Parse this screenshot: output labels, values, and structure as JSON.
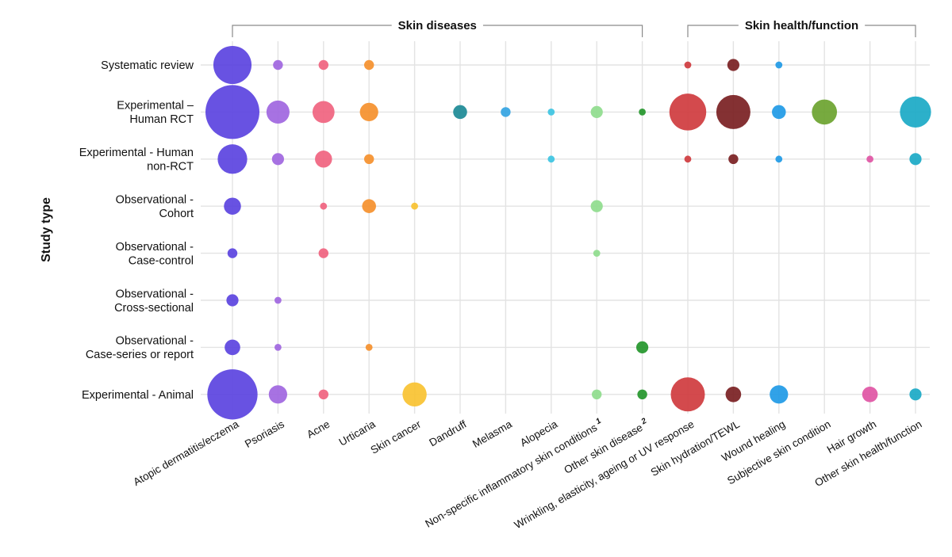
{
  "chart_data": {
    "type": "scatter",
    "subtype": "bubble-matrix",
    "ylabel": "Study type",
    "groups": [
      {
        "label": "Skin diseases",
        "from": "Atopic dermatitis/eczema",
        "to": "Other skin disease"
      },
      {
        "label": "Skin health/function",
        "from": "Wrinkling, elasticity, ageing or UV response",
        "to": "Other skin health/function"
      }
    ],
    "rows": [
      {
        "label": [
          "Systematic review"
        ]
      },
      {
        "label": [
          "Experimental –",
          "Human RCT"
        ]
      },
      {
        "label": [
          "Experimental - Human",
          "non-RCT"
        ]
      },
      {
        "label": [
          "Observational -",
          "Cohort"
        ]
      },
      {
        "label": [
          "Observational -",
          "Case-control"
        ]
      },
      {
        "label": [
          "Observational -",
          "Cross-sectional"
        ]
      },
      {
        "label": [
          "Observational -",
          "Case-series or report"
        ]
      },
      {
        "label": [
          "Experimental - Animal"
        ]
      }
    ],
    "columns": [
      {
        "label": "Atopic dermatitis/eczema",
        "footnote": "",
        "color": "#5b43e0"
      },
      {
        "label": "Psoriasis",
        "footnote": "",
        "color": "#a066e0"
      },
      {
        "label": "Acne",
        "footnote": "",
        "color": "#f0637f"
      },
      {
        "label": "Urticaria",
        "footnote": "",
        "color": "#f5902c"
      },
      {
        "label": "Skin cancer",
        "footnote": "",
        "color": "#f8c231"
      },
      {
        "label": "Dandruff",
        "footnote": "",
        "color": "#1c8a96"
      },
      {
        "label": "Melasma",
        "footnote": "",
        "color": "#34a4e2"
      },
      {
        "label": "Alopecia",
        "footnote": "",
        "color": "#3dc4e2"
      },
      {
        "label": "Non-specific inflammatory skin conditions",
        "footnote": "1",
        "color": "#8fdc8d"
      },
      {
        "label": "Other skin disease",
        "footnote": "2",
        "color": "#24962b"
      },
      {
        "label": "Wrinkling, elasticity, ageing or UV response",
        "footnote": "",
        "color": "#cf3b3e"
      },
      {
        "label": "Skin hydration/TEWL",
        "footnote": "",
        "color": "#7a1f22"
      },
      {
        "label": "Wound healing",
        "footnote": "",
        "color": "#1f9ae6"
      },
      {
        "label": "Subjective skin condition",
        "footnote": "",
        "color": "#6ba32f"
      },
      {
        "label": "Hair growth",
        "footnote": "",
        "color": "#e055a4"
      },
      {
        "label": "Other skin health/function",
        "footnote": "",
        "color": "#1aa9c6"
      }
    ],
    "values": [
      [
        30,
        2,
        2,
        2,
        0,
        0,
        0,
        0,
        0,
        0,
        1,
        3,
        1,
        0,
        0,
        0
      ],
      [
        60,
        11,
        10,
        7,
        0,
        4,
        2,
        1,
        3,
        1,
        28,
        24,
        4,
        13,
        0,
        20
      ],
      [
        18,
        3,
        6,
        2,
        0,
        0,
        0,
        1,
        0,
        0,
        1,
        2,
        1,
        0,
        1,
        3
      ],
      [
        6,
        0,
        1,
        4,
        1,
        0,
        0,
        0,
        3,
        0,
        0,
        0,
        0,
        0,
        0,
        0
      ],
      [
        2,
        0,
        2,
        0,
        0,
        0,
        0,
        0,
        1,
        0,
        0,
        0,
        0,
        0,
        0,
        0
      ],
      [
        3,
        1,
        0,
        0,
        0,
        0,
        0,
        0,
        0,
        0,
        0,
        0,
        0,
        0,
        0,
        0
      ],
      [
        5,
        1,
        0,
        1,
        0,
        0,
        0,
        0,
        0,
        3,
        0,
        0,
        0,
        0,
        0,
        0
      ],
      [
        52,
        7,
        2,
        0,
        12,
        0,
        0,
        0,
        2,
        2,
        24,
        5,
        7,
        0,
        5,
        3
      ]
    ]
  }
}
